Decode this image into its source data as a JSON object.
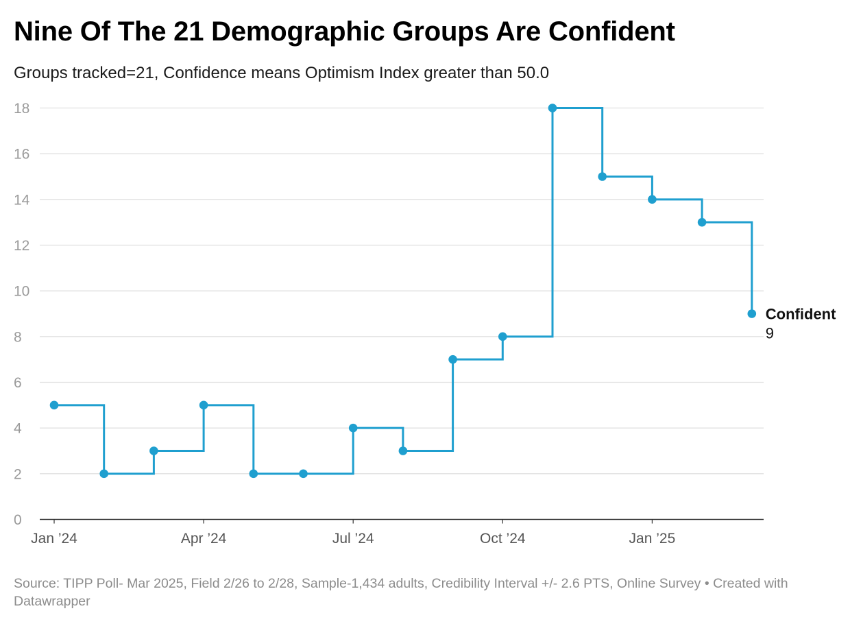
{
  "header": {
    "title": "Nine Of The 21 Demographic Groups Are Confident",
    "subtitle": "Groups tracked=21, Confidence means Optimism Index greater than 50.0"
  },
  "footer": {
    "source": "Source: TIPP Poll- Mar 2025, Field 2/26 to 2/28, Sample-1,434 adults, Credibility Interval +/- 2.6 PTS, Online Survey",
    "separator": " • ",
    "credit": "Created with Datawrapper"
  },
  "colors": {
    "series": "#1f9fcf",
    "grid": "#e0e0e0",
    "axis": "#333333"
  },
  "chart_data": {
    "type": "line",
    "step": "step-after",
    "title": "Nine Of The 21 Demographic Groups Are Confident",
    "subtitle": "Groups tracked=21, Confidence means Optimism Index greater than 50.0",
    "xlabel": "",
    "ylabel": "",
    "ylim": [
      0,
      18
    ],
    "yticks": [
      0,
      2,
      4,
      6,
      8,
      10,
      12,
      14,
      16,
      18
    ],
    "xticks": [
      {
        "label": "Jan ’24",
        "month_index": 0
      },
      {
        "label": "Apr ’24",
        "month_index": 3
      },
      {
        "label": "Jul ’24",
        "month_index": 6
      },
      {
        "label": "Oct ’24",
        "month_index": 9
      },
      {
        "label": "Jan ’25",
        "month_index": 12
      }
    ],
    "series": [
      {
        "name": "Confident",
        "points": [
          {
            "month_index": 0,
            "value": 5
          },
          {
            "month_index": 1,
            "value": 2
          },
          {
            "month_index": 2,
            "value": 3
          },
          {
            "month_index": 3,
            "value": 5
          },
          {
            "month_index": 4,
            "value": 2
          },
          {
            "month_index": 5,
            "value": 2
          },
          {
            "month_index": 6,
            "value": 4
          },
          {
            "month_index": 7,
            "value": 3
          },
          {
            "month_index": 8,
            "value": 7
          },
          {
            "month_index": 9,
            "value": 8
          },
          {
            "month_index": 10,
            "value": 18
          },
          {
            "month_index": 11,
            "value": 15
          },
          {
            "month_index": 12,
            "value": 14
          },
          {
            "month_index": 13,
            "value": 13
          },
          {
            "month_index": 14,
            "value": 9
          }
        ]
      }
    ],
    "end_label": {
      "name": "Confident",
      "value": "9"
    },
    "legend": "none",
    "grid": true
  }
}
